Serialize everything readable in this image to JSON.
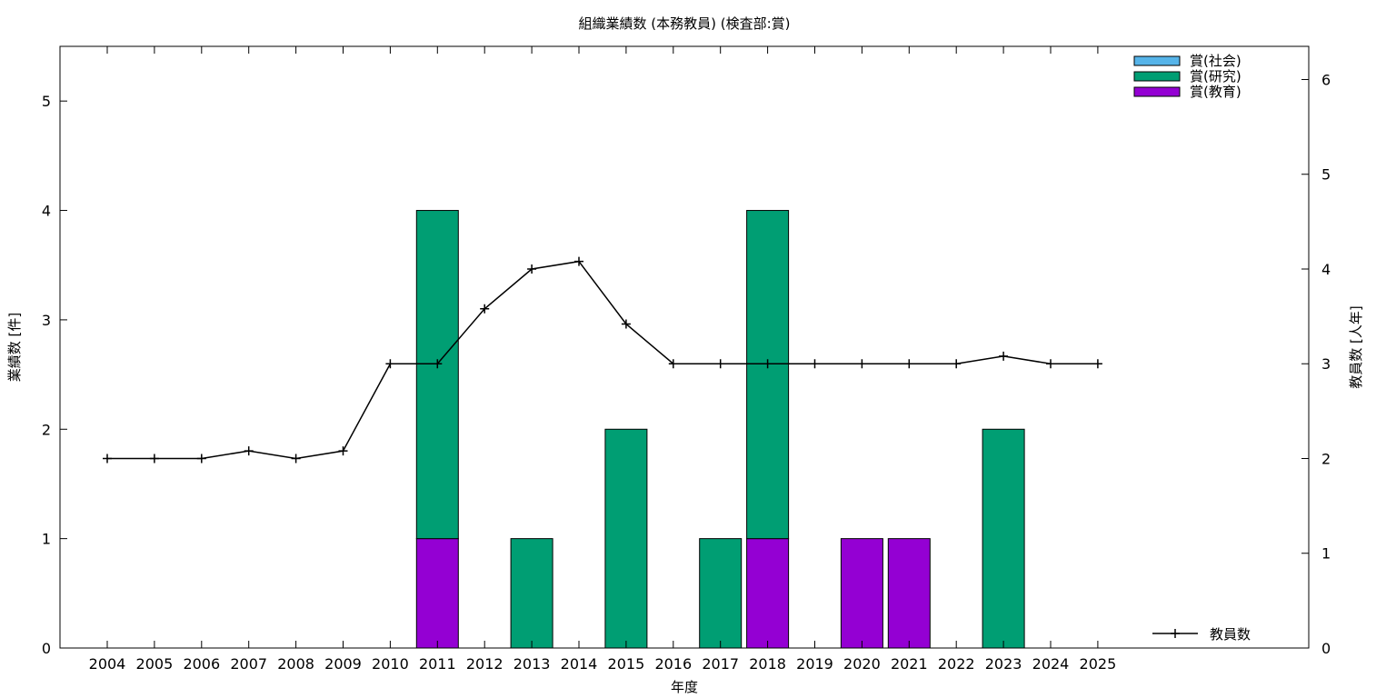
{
  "chart_data": {
    "type": "bar",
    "title": "組織業績数 (本務教員) (検査部:賞)",
    "xlabel": "年度",
    "ylabel": "業績数 [件]",
    "y2label": "教員数 [人年]",
    "ylim": [
      0,
      5.5
    ],
    "y2lim": [
      0,
      6.35
    ],
    "yticks": [
      "0",
      "1",
      "2",
      "3",
      "4",
      "5"
    ],
    "y2ticks": [
      "0",
      "1",
      "2",
      "3",
      "4",
      "5",
      "6"
    ],
    "categories": [
      "2004",
      "2005",
      "2006",
      "2007",
      "2008",
      "2009",
      "2010",
      "2011",
      "2012",
      "2013",
      "2014",
      "2015",
      "2016",
      "2017",
      "2018",
      "2019",
      "2020",
      "2021",
      "2022",
      "2023",
      "2024",
      "2025"
    ],
    "stacked": true,
    "series": [
      {
        "name": "賞(教育)",
        "color": "#9400d3",
        "values": [
          0,
          0,
          0,
          0,
          0,
          0,
          0,
          1,
          0,
          0,
          0,
          0,
          0,
          0,
          1,
          0,
          1,
          1,
          0,
          0,
          0,
          0
        ]
      },
      {
        "name": "賞(研究)",
        "color": "#009e73",
        "values": [
          0,
          0,
          0,
          0,
          0,
          0,
          0,
          3,
          0,
          1,
          0,
          2,
          0,
          1,
          3,
          0,
          0,
          0,
          0,
          2,
          0,
          0
        ]
      },
      {
        "name": "賞(社会)",
        "color": "#56b4e9",
        "values": [
          0,
          0,
          0,
          0,
          0,
          0,
          0,
          0,
          0,
          0,
          0,
          0,
          0,
          0,
          0,
          0,
          0,
          0,
          0,
          0,
          0,
          0
        ]
      }
    ],
    "legend_order": [
      "賞(社会)",
      "賞(研究)",
      "賞(教育)"
    ],
    "legend_position": "top-right",
    "line_series": {
      "name": "教員数",
      "axis": "right",
      "color": "#000000",
      "values": [
        2,
        2,
        2,
        2.08,
        2,
        2.08,
        3,
        3,
        3.58,
        4,
        4.08,
        3.42,
        3,
        3,
        3,
        3,
        3,
        3,
        3,
        3.08,
        3,
        3
      ]
    },
    "line_legend_position": "bottom-right",
    "grid": false
  }
}
